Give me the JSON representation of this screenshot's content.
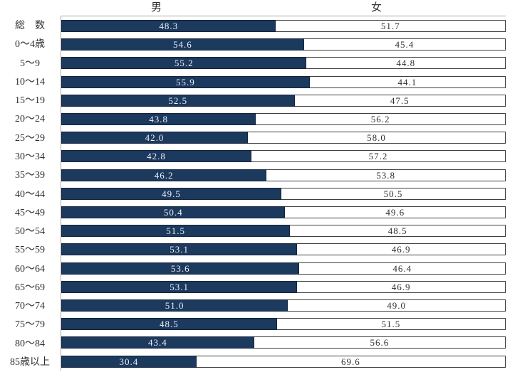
{
  "header": {
    "male": "男",
    "female": "女"
  },
  "colors": {
    "male_bar": "#1c395e",
    "male_bar_border": "#16243a",
    "male_value_text": "#edf0f5",
    "female_bar": "#ffffff",
    "female_bar_border": "#3f3f3f",
    "female_value_text": "#303030",
    "axis_line": "#a9a9a9",
    "label_text": "#303030"
  },
  "chart_data": {
    "type": "bar",
    "orientation": "horizontal-stacked",
    "unit": "%",
    "xlim": [
      0,
      100
    ],
    "grid": false,
    "legend_position": "column-headers-top",
    "value_label_format": "one-decimal",
    "categories": [
      "総　数",
      "0〜4歳",
      "5〜9",
      "10〜14",
      "15〜19",
      "20〜24",
      "25〜29",
      "30〜34",
      "35〜39",
      "40〜44",
      "45〜49",
      "50〜54",
      "55〜59",
      "60〜64",
      "65〜69",
      "70〜74",
      "75〜79",
      "80〜84",
      "85歳以上"
    ],
    "series": [
      {
        "name": "男",
        "values": [
          48.3,
          54.6,
          55.2,
          55.9,
          52.5,
          43.8,
          42.0,
          42.8,
          46.2,
          49.5,
          50.4,
          51.5,
          53.1,
          53.6,
          53.1,
          51.0,
          48.5,
          43.4,
          30.4
        ]
      },
      {
        "name": "女",
        "values": [
          51.7,
          45.4,
          44.8,
          44.1,
          47.5,
          56.2,
          58.0,
          57.2,
          53.8,
          50.5,
          49.6,
          48.5,
          46.9,
          46.4,
          46.9,
          49.0,
          51.5,
          56.6,
          69.6
        ]
      }
    ]
  }
}
